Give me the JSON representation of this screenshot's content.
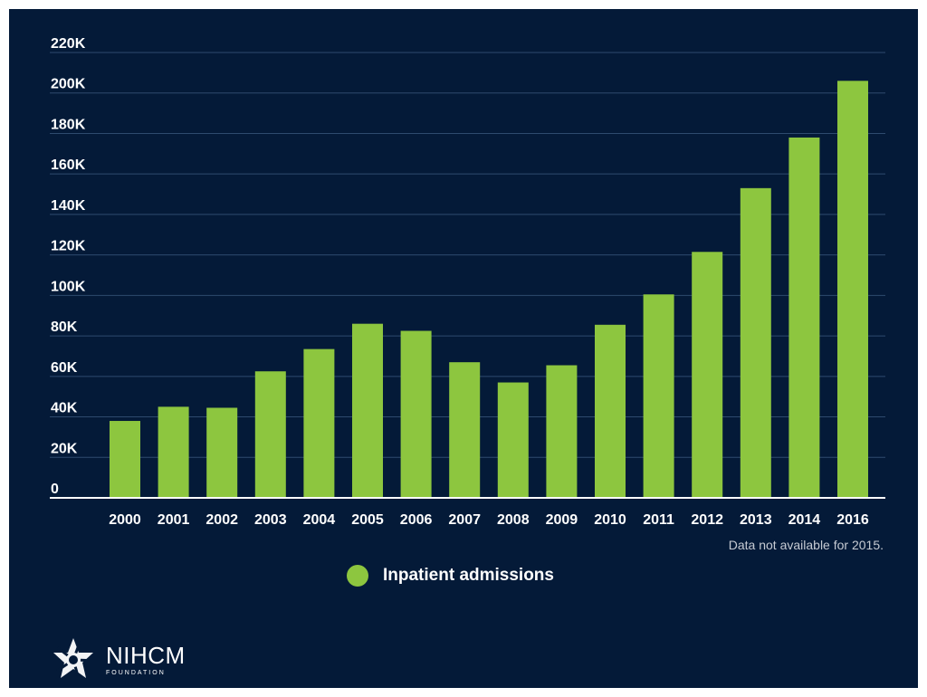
{
  "chart_data": {
    "type": "bar",
    "categories": [
      "2000",
      "2001",
      "2002",
      "2003",
      "2004",
      "2005",
      "2006",
      "2007",
      "2008",
      "2009",
      "2010",
      "2011",
      "2012",
      "2013",
      "2014",
      "2016"
    ],
    "series": [
      {
        "name": "Inpatient admissions",
        "values": [
          38000,
          45000,
          44500,
          62500,
          73500,
          86000,
          82500,
          67000,
          57000,
          65500,
          85500,
          100500,
          121500,
          153000,
          178000,
          206000
        ]
      }
    ],
    "ylim": [
      0,
      220000
    ],
    "yticks": [
      {
        "value": 0,
        "label": "0"
      },
      {
        "value": 20000,
        "label": "20K"
      },
      {
        "value": 40000,
        "label": "40K"
      },
      {
        "value": 60000,
        "label": "60K"
      },
      {
        "value": 80000,
        "label": "80K"
      },
      {
        "value": 100000,
        "label": "100K"
      },
      {
        "value": 120000,
        "label": "120K"
      },
      {
        "value": 140000,
        "label": "140K"
      },
      {
        "value": 160000,
        "label": "160K"
      },
      {
        "value": 180000,
        "label": "180K"
      },
      {
        "value": 200000,
        "label": "200K"
      },
      {
        "value": 220000,
        "label": "220K"
      }
    ],
    "grid": true,
    "legend": "bottom-center",
    "note": "Data not available for 2015.",
    "colors": {
      "bar": "#8dc63f",
      "background": "#041a38",
      "grid": "#2e4a6e",
      "text": "#ffffff"
    }
  },
  "logo": {
    "name": "NIHCM",
    "sub": "FOUNDATION",
    "icon": "star-icon"
  }
}
